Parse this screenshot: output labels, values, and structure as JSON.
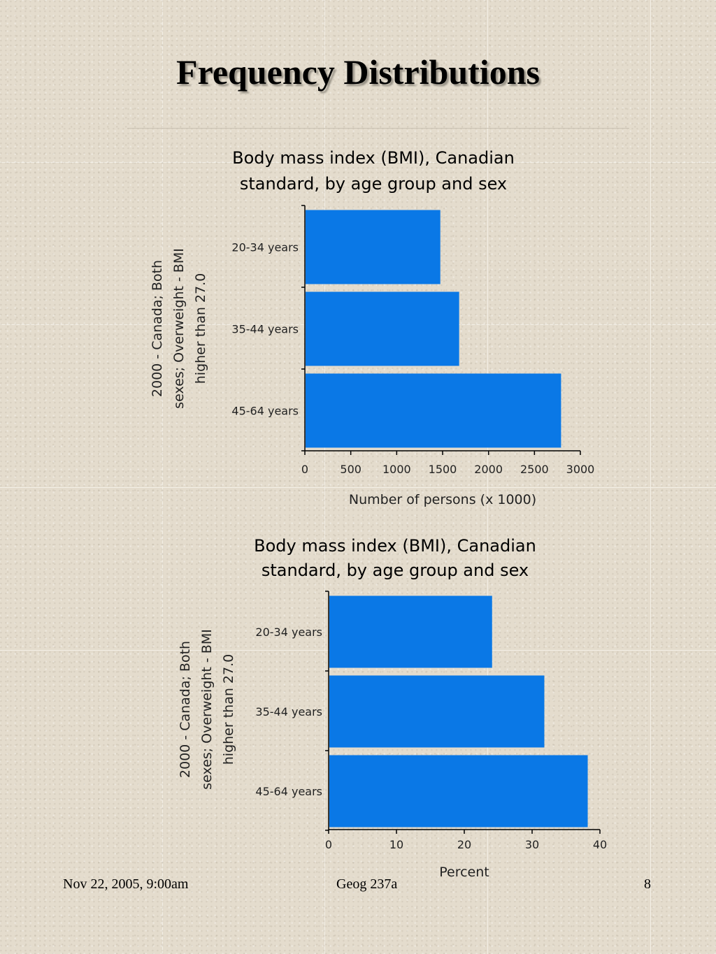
{
  "slide": {
    "title": "Frequency Distributions"
  },
  "footer": {
    "date": "Nov 22, 2005, 9:00am",
    "course": "Geog 237a",
    "page": "8"
  },
  "colors": {
    "bar": "#0a78e6",
    "axis": "#000000"
  },
  "chart_data": [
    {
      "type": "bar",
      "orientation": "horizontal",
      "title_lines": [
        "Body mass index (BMI), Canadian",
        "standard, by age group and sex"
      ],
      "categories": [
        "20-34 years",
        "35-44 years",
        "45-64 years"
      ],
      "values": [
        1475,
        1680,
        2790
      ],
      "xlabel": "Number of persons (x 1000)",
      "ylabel_lines": [
        "2000 - Canada; Both",
        "sexes; Overweight - BMI",
        "higher than 27.0"
      ],
      "xlim": [
        0,
        3000
      ],
      "xticks": [
        "0",
        "500",
        "1000",
        "1500",
        "2000",
        "2500",
        "3000"
      ],
      "grid": false
    },
    {
      "type": "bar",
      "orientation": "horizontal",
      "title_lines": [
        "Body mass index (BMI), Canadian",
        "standard, by age group and sex"
      ],
      "categories": [
        "20-34 years",
        "35-44 years",
        "45-64 years"
      ],
      "values": [
        24.1,
        31.8,
        38.2
      ],
      "xlabel": "Percent",
      "ylabel_lines": [
        "2000 - Canada; Both",
        "sexes; Overweight - BMI",
        "higher than 27.0"
      ],
      "xlim": [
        0,
        40
      ],
      "xticks": [
        "0",
        "10",
        "20",
        "30",
        "40"
      ],
      "grid": false
    }
  ]
}
